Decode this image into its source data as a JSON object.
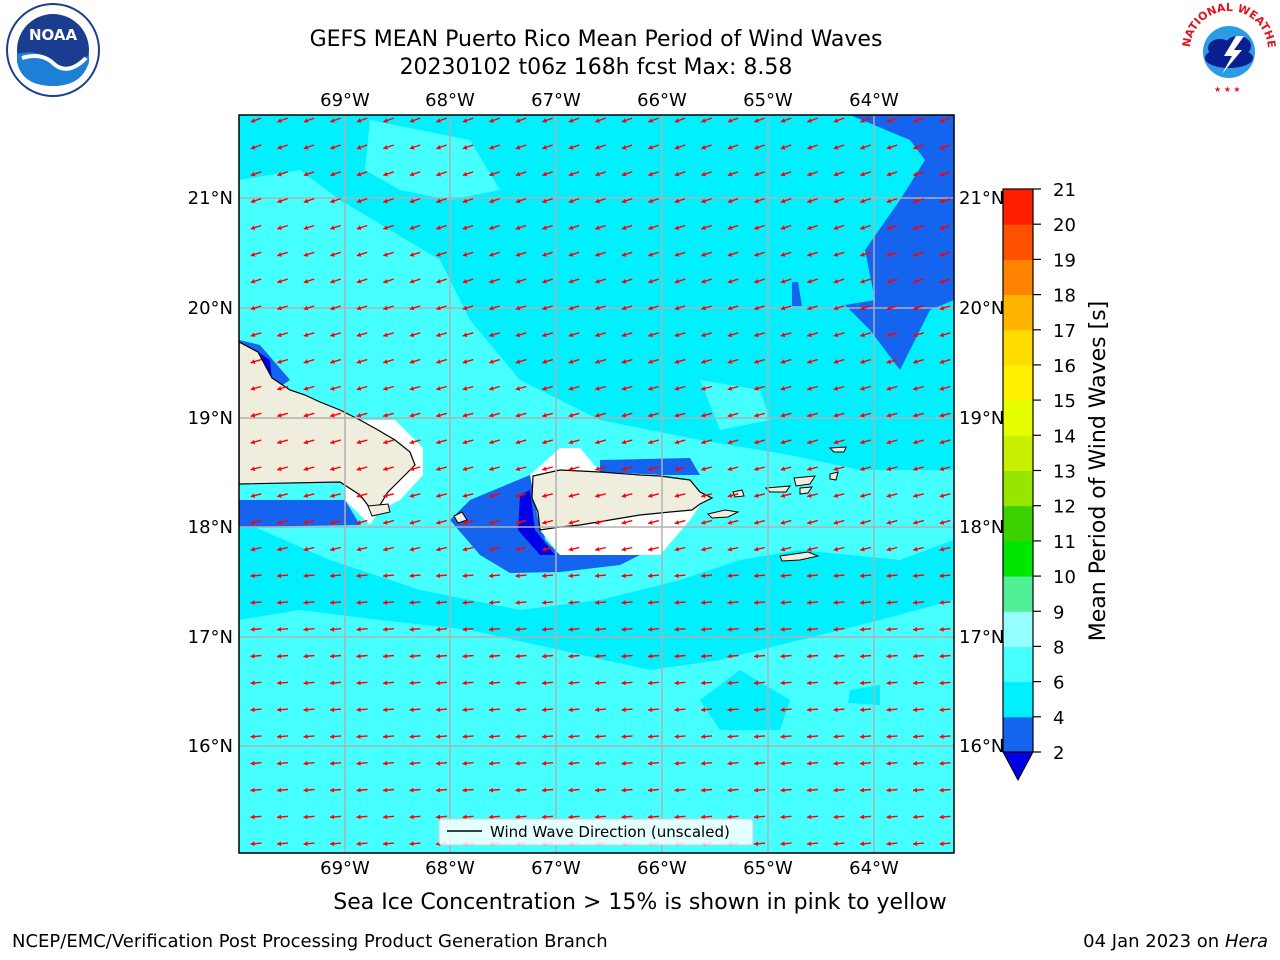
{
  "title": {
    "line1": "GEFS MEAN Puerto Rico Mean Period of Wind Waves",
    "line2": "20230102 t06z 168h fcst   Max: 8.58"
  },
  "map": {
    "lon_labels": [
      "69°W",
      "68°W",
      "67°W",
      "66°W",
      "65°W",
      "64°W"
    ],
    "lat_labels": [
      "21°N",
      "20°N",
      "19°N",
      "18°N",
      "17°N",
      "16°N"
    ],
    "legend_label": "Wind Wave Direction (unscaled)",
    "arrow_color": "#ff0000",
    "land_color": "#efedde",
    "gridline_color": "#b0b0b0"
  },
  "colorbar": {
    "label": "Mean Period of Wind Waves [s]",
    "ticks": [
      "2",
      "4",
      "6",
      "8",
      "9",
      "10",
      "11",
      "12",
      "13",
      "14",
      "15",
      "16",
      "17",
      "18",
      "19",
      "20",
      "21"
    ],
    "colors": [
      "#1464f0",
      "#00f0ff",
      "#46ffff",
      "#96ffff",
      "#50f096",
      "#00e600",
      "#3cd200",
      "#96e600",
      "#c8f000",
      "#e6ff00",
      "#fff000",
      "#ffdc00",
      "#ffb400",
      "#ff8200",
      "#ff5000",
      "#ff1e00"
    ],
    "under_color": "#0000e6"
  },
  "note": "Sea Ice Concentration > 15% is shown in pink to yellow",
  "footer": {
    "left": "NCEP/EMC/Verification Post Processing Product Generation Branch",
    "right_date": "04 Jan 2023 on ",
    "right_host": "Hera"
  },
  "logos": {
    "noaa": "NOAA",
    "nws": "NATIONAL WEATHER SERVICE"
  }
}
